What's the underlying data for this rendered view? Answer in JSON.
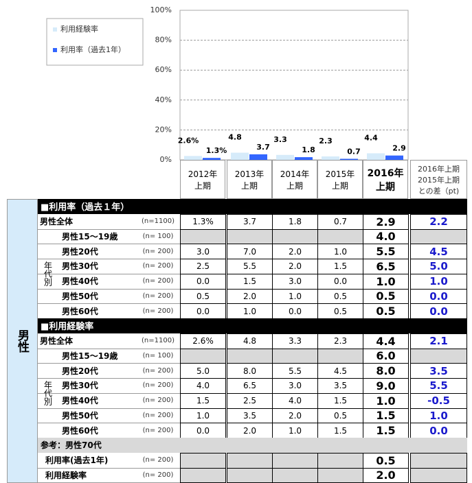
{
  "chart_data": {
    "type": "bar",
    "categories": [
      [
        "2012年",
        "上期"
      ],
      [
        "2013年",
        "上期"
      ],
      [
        "2014年",
        "上期"
      ],
      [
        "2015年",
        "上期"
      ],
      [
        "2016年",
        "上期"
      ]
    ],
    "series": [
      {
        "name": "利用経験率",
        "color": "#d6ebfa",
        "values": [
          2.6,
          4.8,
          3.3,
          2.3,
          4.4
        ],
        "value_labels": [
          "2.6%",
          "4.8",
          "3.3",
          "2.3",
          "4.4"
        ]
      },
      {
        "name": "利用率（過去1年）",
        "color": "#3366ff",
        "values": [
          1.3,
          3.7,
          1.8,
          0.7,
          2.9
        ],
        "value_labels": [
          "1.3%",
          "3.7",
          "1.8",
          "0.7",
          "2.9"
        ]
      }
    ],
    "ylim": [
      0,
      100
    ],
    "yticks": [
      {
        "value": 0,
        "label": "0%"
      },
      {
        "value": 20,
        "label": "20%"
      },
      {
        "value": 40,
        "label": "40%"
      },
      {
        "value": 60,
        "label": "60%"
      },
      {
        "value": 80,
        "label": "80%"
      },
      {
        "value": 100,
        "label": "100%"
      }
    ],
    "grid": true
  },
  "table": {
    "diff_header": [
      "2016年上期",
      "2015年上期",
      "との差（pt)"
    ],
    "side_label": "男性",
    "sections": [
      {
        "title": "■利用率（過去１年）",
        "total": {
          "label": "男性全体",
          "n": "(n=1100)",
          "values": [
            "1.3%",
            "3.7",
            "1.8",
            "0.7",
            "2.9"
          ],
          "diff": "2.2"
        },
        "group_label": "年代別",
        "rows": [
          {
            "label": "男性15～19歳",
            "n": "(n= 100)",
            "values": [
              null,
              null,
              null,
              null,
              "4.0"
            ],
            "diff": null
          },
          {
            "label": "男性20代",
            "n": "(n= 200)",
            "values": [
              "3.0",
              "7.0",
              "2.0",
              "1.0",
              "5.5"
            ],
            "diff": "4.5"
          },
          {
            "label": "男性30代",
            "n": "(n= 200)",
            "values": [
              "2.5",
              "5.5",
              "2.0",
              "1.5",
              "6.5"
            ],
            "diff": "5.0"
          },
          {
            "label": "男性40代",
            "n": "(n= 200)",
            "values": [
              "0.0",
              "1.5",
              "3.0",
              "0.0",
              "1.0"
            ],
            "diff": "1.0"
          },
          {
            "label": "男性50代",
            "n": "(n= 200)",
            "values": [
              "0.5",
              "2.0",
              "1.0",
              "0.5",
              "0.5"
            ],
            "diff": "0.0"
          },
          {
            "label": "男性60代",
            "n": "(n= 200)",
            "values": [
              "0.0",
              "1.0",
              "0.0",
              "0.5",
              "0.5"
            ],
            "diff": "0.0"
          }
        ]
      },
      {
        "title": "■利用経験率",
        "total": {
          "label": "男性全体",
          "n": "(n=1100)",
          "values": [
            "2.6%",
            "4.8",
            "3.3",
            "2.3",
            "4.4"
          ],
          "diff": "2.1"
        },
        "group_label": "年代別",
        "rows": [
          {
            "label": "男性15～19歳",
            "n": "(n= 100)",
            "values": [
              null,
              null,
              null,
              null,
              "6.0"
            ],
            "diff": null
          },
          {
            "label": "男性20代",
            "n": "(n= 200)",
            "values": [
              "5.0",
              "8.0",
              "5.5",
              "4.5",
              "8.0"
            ],
            "diff": "3.5"
          },
          {
            "label": "男性30代",
            "n": "(n= 200)",
            "values": [
              "4.0",
              "6.5",
              "3.0",
              "3.5",
              "9.0"
            ],
            "diff": "5.5"
          },
          {
            "label": "男性40代",
            "n": "(n= 200)",
            "values": [
              "1.5",
              "2.5",
              "4.0",
              "1.5",
              "1.0"
            ],
            "diff": "-0.5"
          },
          {
            "label": "男性50代",
            "n": "(n= 200)",
            "values": [
              "1.0",
              "3.5",
              "2.0",
              "0.5",
              "1.5"
            ],
            "diff": "1.0"
          },
          {
            "label": "男性60代",
            "n": "(n= 200)",
            "values": [
              "0.0",
              "2.0",
              "1.0",
              "1.5",
              "1.5"
            ],
            "diff": "0.0"
          }
        ]
      }
    ],
    "reference": {
      "title": "参考：男性70代",
      "rows": [
        {
          "label": "利用率(過去1年)",
          "n": "(n= 200)",
          "values": [
            null,
            null,
            null,
            null,
            "0.5"
          ],
          "diff": null
        },
        {
          "label": "利用経験率",
          "n": "(n= 200)",
          "values": [
            null,
            null,
            null,
            null,
            "2.0"
          ],
          "diff": null
        }
      ]
    }
  }
}
